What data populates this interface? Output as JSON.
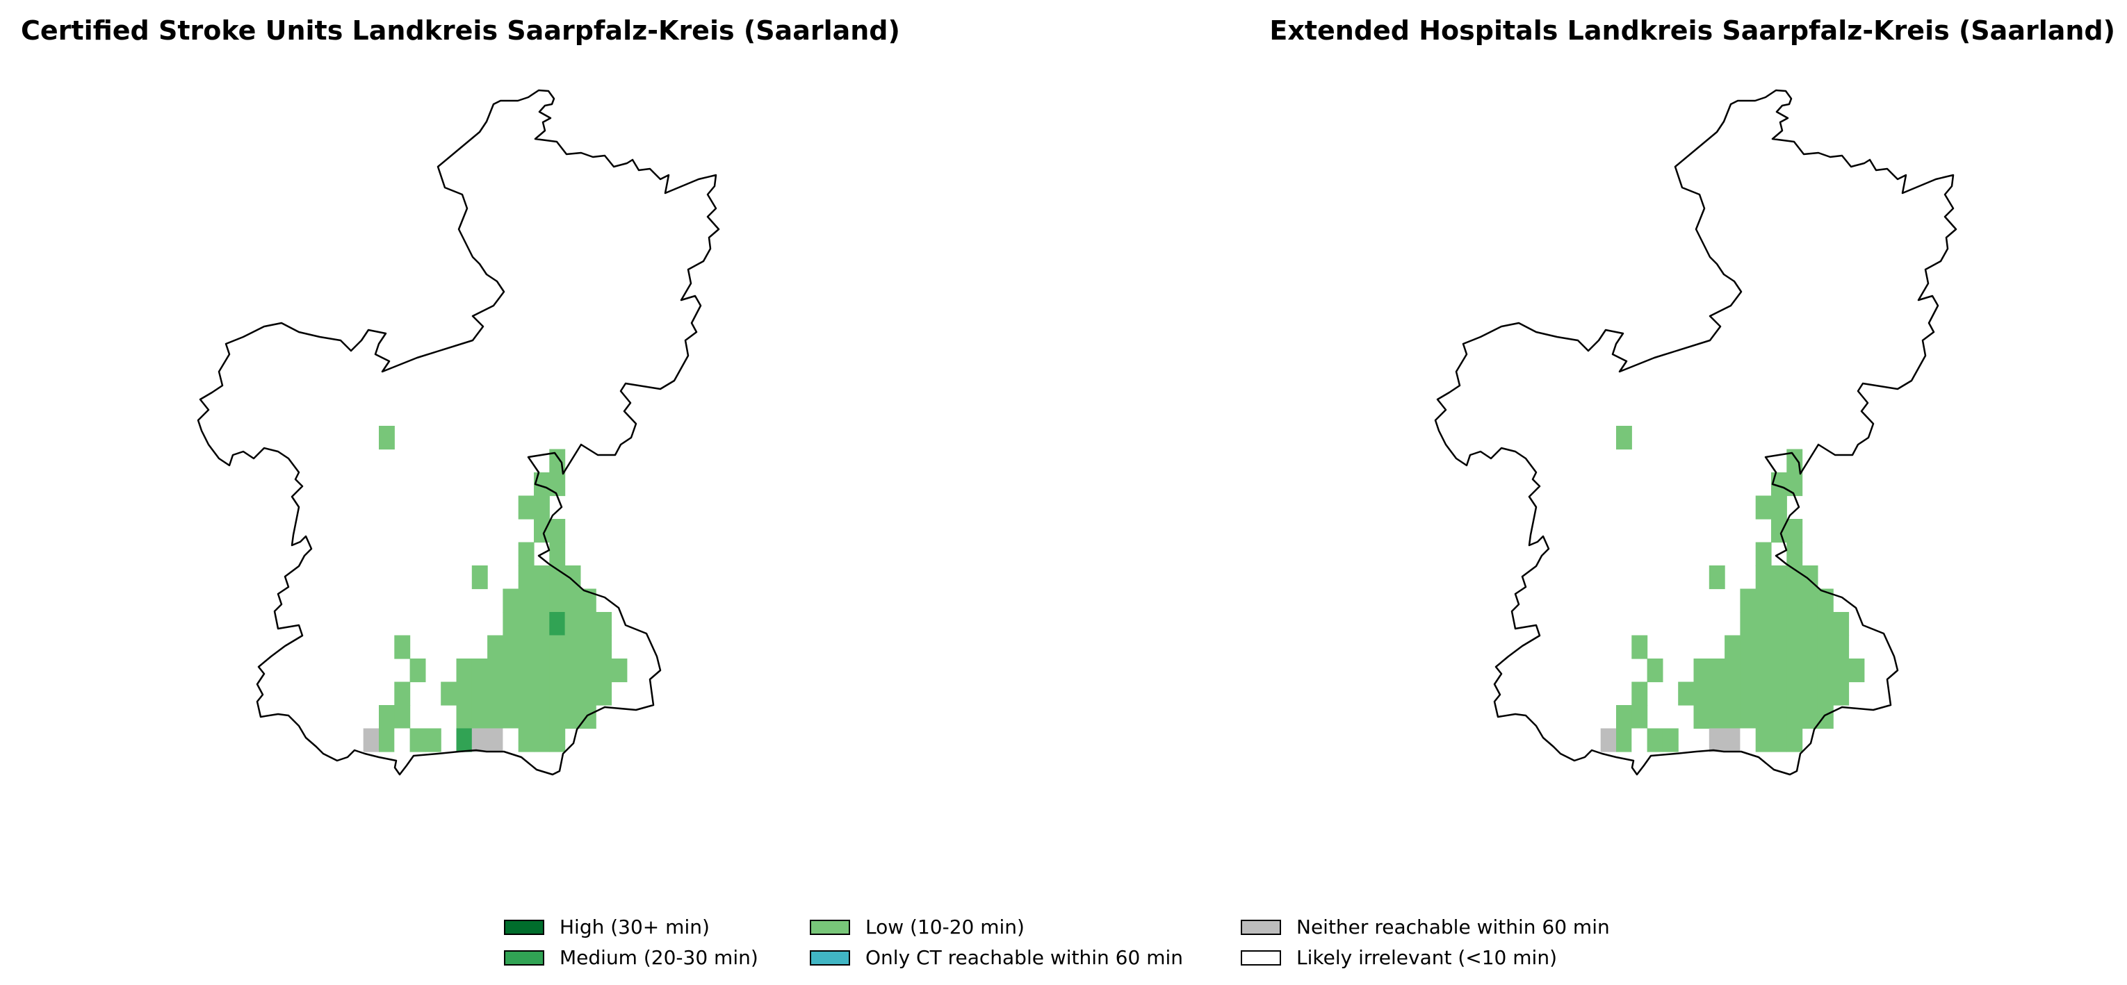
{
  "maps": [
    {
      "title": "Certified Stroke Units Landkreis Saarpfalz-Kreis (Saarland)",
      "cells": [
        {
          "row": 0,
          "col": 0,
          "level": "low"
        },
        {
          "row": 1,
          "col": 11,
          "level": "low"
        },
        {
          "row": 2,
          "col": 10,
          "level": "low"
        },
        {
          "row": 2,
          "col": 11,
          "level": "low"
        },
        {
          "row": 3,
          "col": 9,
          "level": "low"
        },
        {
          "row": 3,
          "col": 10,
          "level": "low"
        },
        {
          "row": 4,
          "col": 10,
          "level": "low"
        },
        {
          "row": 4,
          "col": 11,
          "level": "low"
        },
        {
          "row": 5,
          "col": 9,
          "level": "low"
        },
        {
          "row": 5,
          "col": 11,
          "level": "low"
        },
        {
          "row": 6,
          "col": 6,
          "level": "low"
        },
        {
          "row": 6,
          "col": 9,
          "level": "low"
        },
        {
          "row": 6,
          "col": 10,
          "level": "low"
        },
        {
          "row": 6,
          "col": 11,
          "level": "low"
        },
        {
          "row": 6,
          "col": 12,
          "level": "low"
        },
        {
          "row": 7,
          "col": 8,
          "level": "low"
        },
        {
          "row": 7,
          "col": 9,
          "level": "low"
        },
        {
          "row": 7,
          "col": 10,
          "level": "low"
        },
        {
          "row": 7,
          "col": 11,
          "level": "low"
        },
        {
          "row": 7,
          "col": 12,
          "level": "low"
        },
        {
          "row": 7,
          "col": 13,
          "level": "low"
        },
        {
          "row": 8,
          "col": 8,
          "level": "low"
        },
        {
          "row": 8,
          "col": 9,
          "level": "low"
        },
        {
          "row": 8,
          "col": 10,
          "level": "low"
        },
        {
          "row": 8,
          "col": 11,
          "level": "medium"
        },
        {
          "row": 8,
          "col": 12,
          "level": "low"
        },
        {
          "row": 8,
          "col": 13,
          "level": "low"
        },
        {
          "row": 8,
          "col": 14,
          "level": "low"
        },
        {
          "row": 9,
          "col": 1,
          "level": "low"
        },
        {
          "row": 9,
          "col": 7,
          "level": "low"
        },
        {
          "row": 9,
          "col": 8,
          "level": "low"
        },
        {
          "row": 9,
          "col": 9,
          "level": "low"
        },
        {
          "row": 9,
          "col": 10,
          "level": "low"
        },
        {
          "row": 9,
          "col": 11,
          "level": "low"
        },
        {
          "row": 9,
          "col": 12,
          "level": "low"
        },
        {
          "row": 9,
          "col": 13,
          "level": "low"
        },
        {
          "row": 9,
          "col": 14,
          "level": "low"
        },
        {
          "row": 10,
          "col": 2,
          "level": "low"
        },
        {
          "row": 10,
          "col": 5,
          "level": "low"
        },
        {
          "row": 10,
          "col": 6,
          "level": "low"
        },
        {
          "row": 10,
          "col": 7,
          "level": "low"
        },
        {
          "row": 10,
          "col": 8,
          "level": "low"
        },
        {
          "row": 10,
          "col": 9,
          "level": "low"
        },
        {
          "row": 10,
          "col": 10,
          "level": "low"
        },
        {
          "row": 10,
          "col": 11,
          "level": "low"
        },
        {
          "row": 10,
          "col": 12,
          "level": "low"
        },
        {
          "row": 10,
          "col": 13,
          "level": "low"
        },
        {
          "row": 10,
          "col": 14,
          "level": "low"
        },
        {
          "row": 10,
          "col": 15,
          "level": "low"
        },
        {
          "row": 11,
          "col": 1,
          "level": "low"
        },
        {
          "row": 11,
          "col": 4,
          "level": "low"
        },
        {
          "row": 11,
          "col": 5,
          "level": "low"
        },
        {
          "row": 11,
          "col": 6,
          "level": "low"
        },
        {
          "row": 11,
          "col": 7,
          "level": "low"
        },
        {
          "row": 11,
          "col": 8,
          "level": "low"
        },
        {
          "row": 11,
          "col": 9,
          "level": "low"
        },
        {
          "row": 11,
          "col": 10,
          "level": "low"
        },
        {
          "row": 11,
          "col": 11,
          "level": "low"
        },
        {
          "row": 11,
          "col": 12,
          "level": "low"
        },
        {
          "row": 11,
          "col": 13,
          "level": "low"
        },
        {
          "row": 11,
          "col": 14,
          "level": "low"
        },
        {
          "row": 12,
          "col": 0,
          "level": "low"
        },
        {
          "row": 12,
          "col": 1,
          "level": "low"
        },
        {
          "row": 12,
          "col": 5,
          "level": "low"
        },
        {
          "row": 12,
          "col": 6,
          "level": "low"
        },
        {
          "row": 12,
          "col": 7,
          "level": "low"
        },
        {
          "row": 12,
          "col": 8,
          "level": "low"
        },
        {
          "row": 12,
          "col": 9,
          "level": "low"
        },
        {
          "row": 12,
          "col": 10,
          "level": "low"
        },
        {
          "row": 12,
          "col": 11,
          "level": "low"
        },
        {
          "row": 12,
          "col": 12,
          "level": "low"
        },
        {
          "row": 12,
          "col": 13,
          "level": "low"
        },
        {
          "row": 13,
          "col": -1,
          "level": "neither"
        },
        {
          "row": 13,
          "col": 0,
          "level": "low"
        },
        {
          "row": 13,
          "col": 1,
          "level": "irrelevant"
        },
        {
          "row": 13,
          "col": 2,
          "level": "low"
        },
        {
          "row": 13,
          "col": 3,
          "level": "low"
        },
        {
          "row": 13,
          "col": 5,
          "level": "medium"
        },
        {
          "row": 13,
          "col": 6,
          "level": "neither"
        },
        {
          "row": 13,
          "col": 7,
          "level": "neither"
        },
        {
          "row": 13,
          "col": 8,
          "level": "irrelevant"
        },
        {
          "row": 13,
          "col": 9,
          "level": "low"
        },
        {
          "row": 13,
          "col": 10,
          "level": "low"
        },
        {
          "row": 13,
          "col": 11,
          "level": "low"
        }
      ]
    },
    {
      "title": "Extended Hospitals Landkreis Saarpfalz-Kreis (Saarland)",
      "cells": [
        {
          "row": 0,
          "col": 0,
          "level": "low"
        },
        {
          "row": 1,
          "col": 11,
          "level": "low"
        },
        {
          "row": 2,
          "col": 10,
          "level": "low"
        },
        {
          "row": 2,
          "col": 11,
          "level": "low"
        },
        {
          "row": 3,
          "col": 9,
          "level": "low"
        },
        {
          "row": 3,
          "col": 10,
          "level": "low"
        },
        {
          "row": 4,
          "col": 10,
          "level": "low"
        },
        {
          "row": 4,
          "col": 11,
          "level": "low"
        },
        {
          "row": 5,
          "col": 9,
          "level": "low"
        },
        {
          "row": 5,
          "col": 11,
          "level": "low"
        },
        {
          "row": 6,
          "col": 6,
          "level": "low"
        },
        {
          "row": 6,
          "col": 9,
          "level": "low"
        },
        {
          "row": 6,
          "col": 10,
          "level": "low"
        },
        {
          "row": 6,
          "col": 11,
          "level": "low"
        },
        {
          "row": 6,
          "col": 12,
          "level": "low"
        },
        {
          "row": 7,
          "col": 8,
          "level": "low"
        },
        {
          "row": 7,
          "col": 9,
          "level": "low"
        },
        {
          "row": 7,
          "col": 10,
          "level": "low"
        },
        {
          "row": 7,
          "col": 11,
          "level": "low"
        },
        {
          "row": 7,
          "col": 12,
          "level": "low"
        },
        {
          "row": 7,
          "col": 13,
          "level": "low"
        },
        {
          "row": 8,
          "col": 8,
          "level": "low"
        },
        {
          "row": 8,
          "col": 9,
          "level": "low"
        },
        {
          "row": 8,
          "col": 10,
          "level": "low"
        },
        {
          "row": 8,
          "col": 11,
          "level": "low"
        },
        {
          "row": 8,
          "col": 12,
          "level": "low"
        },
        {
          "row": 8,
          "col": 13,
          "level": "low"
        },
        {
          "row": 8,
          "col": 14,
          "level": "low"
        },
        {
          "row": 9,
          "col": 1,
          "level": "low"
        },
        {
          "row": 9,
          "col": 7,
          "level": "low"
        },
        {
          "row": 9,
          "col": 8,
          "level": "low"
        },
        {
          "row": 9,
          "col": 9,
          "level": "low"
        },
        {
          "row": 9,
          "col": 10,
          "level": "low"
        },
        {
          "row": 9,
          "col": 11,
          "level": "low"
        },
        {
          "row": 9,
          "col": 12,
          "level": "low"
        },
        {
          "row": 9,
          "col": 13,
          "level": "low"
        },
        {
          "row": 9,
          "col": 14,
          "level": "low"
        },
        {
          "row": 10,
          "col": 2,
          "level": "low"
        },
        {
          "row": 10,
          "col": 5,
          "level": "low"
        },
        {
          "row": 10,
          "col": 6,
          "level": "low"
        },
        {
          "row": 10,
          "col": 7,
          "level": "low"
        },
        {
          "row": 10,
          "col": 8,
          "level": "low"
        },
        {
          "row": 10,
          "col": 9,
          "level": "low"
        },
        {
          "row": 10,
          "col": 10,
          "level": "low"
        },
        {
          "row": 10,
          "col": 11,
          "level": "low"
        },
        {
          "row": 10,
          "col": 12,
          "level": "low"
        },
        {
          "row": 10,
          "col": 13,
          "level": "low"
        },
        {
          "row": 10,
          "col": 14,
          "level": "low"
        },
        {
          "row": 10,
          "col": 15,
          "level": "low"
        },
        {
          "row": 11,
          "col": 1,
          "level": "low"
        },
        {
          "row": 11,
          "col": 4,
          "level": "low"
        },
        {
          "row": 11,
          "col": 5,
          "level": "low"
        },
        {
          "row": 11,
          "col": 6,
          "level": "low"
        },
        {
          "row": 11,
          "col": 7,
          "level": "low"
        },
        {
          "row": 11,
          "col": 8,
          "level": "low"
        },
        {
          "row": 11,
          "col": 9,
          "level": "low"
        },
        {
          "row": 11,
          "col": 10,
          "level": "low"
        },
        {
          "row": 11,
          "col": 11,
          "level": "low"
        },
        {
          "row": 11,
          "col": 12,
          "level": "low"
        },
        {
          "row": 11,
          "col": 13,
          "level": "low"
        },
        {
          "row": 11,
          "col": 14,
          "level": "low"
        },
        {
          "row": 12,
          "col": 0,
          "level": "low"
        },
        {
          "row": 12,
          "col": 1,
          "level": "low"
        },
        {
          "row": 12,
          "col": 5,
          "level": "low"
        },
        {
          "row": 12,
          "col": 6,
          "level": "low"
        },
        {
          "row": 12,
          "col": 7,
          "level": "low"
        },
        {
          "row": 12,
          "col": 8,
          "level": "low"
        },
        {
          "row": 12,
          "col": 9,
          "level": "low"
        },
        {
          "row": 12,
          "col": 10,
          "level": "low"
        },
        {
          "row": 12,
          "col": 11,
          "level": "low"
        },
        {
          "row": 12,
          "col": 12,
          "level": "low"
        },
        {
          "row": 12,
          "col": 13,
          "level": "low"
        },
        {
          "row": 13,
          "col": -1,
          "level": "neither"
        },
        {
          "row": 13,
          "col": 0,
          "level": "low"
        },
        {
          "row": 13,
          "col": 1,
          "level": "irrelevant"
        },
        {
          "row": 13,
          "col": 2,
          "level": "low"
        },
        {
          "row": 13,
          "col": 3,
          "level": "low"
        },
        {
          "row": 13,
          "col": 6,
          "level": "neither"
        },
        {
          "row": 13,
          "col": 7,
          "level": "neither"
        },
        {
          "row": 13,
          "col": 8,
          "level": "irrelevant"
        },
        {
          "row": 13,
          "col": 9,
          "level": "low"
        },
        {
          "row": 13,
          "col": 10,
          "level": "low"
        },
        {
          "row": 13,
          "col": 11,
          "level": "low"
        }
      ]
    }
  ],
  "legend": [
    {
      "key": "high",
      "label": "High (30+ min)",
      "color": "#006d2c"
    },
    {
      "key": "medium",
      "label": "Medium (20-30 min)",
      "color": "#31a354"
    },
    {
      "key": "low",
      "label": "Low (10-20 min)",
      "color": "#78c679"
    },
    {
      "key": "ct",
      "label": "Only CT reachable within 60 min",
      "color": "#41b6c4"
    },
    {
      "key": "neither",
      "label": "Neither reachable within 60 min",
      "color": "#bdbdbd"
    },
    {
      "key": "irrelevant",
      "label": "Likely irrelevant (<10 min)",
      "color": "#ffffff"
    }
  ]
}
